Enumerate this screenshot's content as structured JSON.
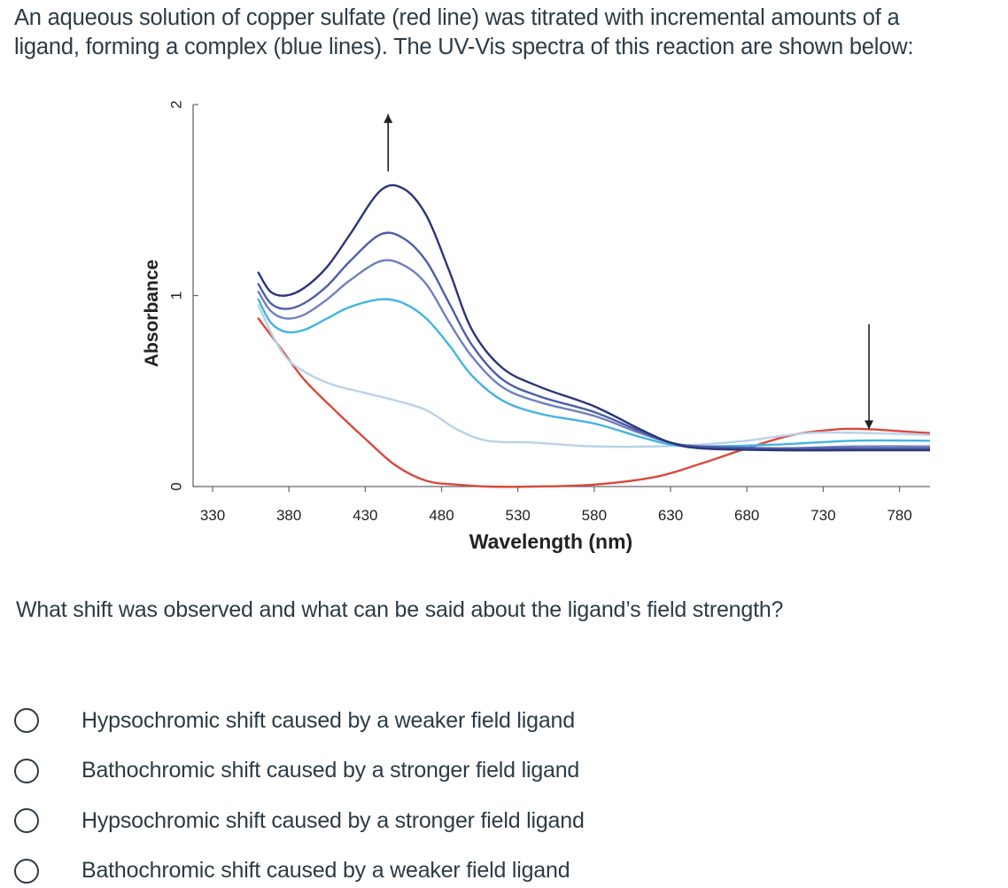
{
  "intro": {
    "line1": "An aqueous solution of copper sulfate (red line) was titrated with incremental amounts of a",
    "line2": "ligand, forming a complex (blue lines). The UV-Vis spectra of this reaction are shown below:"
  },
  "question": "What shift was observed and what can be said about the ligand’s field strength?",
  "answers": [
    "Hypsochromic shift caused by a weaker field ligand",
    "Bathochromic shift caused by a stronger field ligand",
    "Hypsochromic shift caused by a stronger field ligand",
    "Bathochromic shift caused by a weaker field ligand"
  ],
  "chart_data": {
    "type": "line",
    "title": "",
    "xlabel": "Wavelength (nm)",
    "ylabel": "Absorbance",
    "xlim": [
      330,
      800
    ],
    "ylim": [
      0,
      2
    ],
    "x_ticks": [
      330,
      380,
      430,
      480,
      530,
      580,
      630,
      680,
      730,
      780
    ],
    "x_tick_labels": [
      "330",
      "380",
      "430",
      "480",
      "530",
      "580",
      "630",
      "680",
      "730",
      "780"
    ],
    "y_ticks": [
      0,
      1,
      2
    ],
    "y_tick_labels": [
      "0",
      "1",
      "2"
    ],
    "grid": false,
    "legend": "none",
    "annotations": [
      {
        "type": "arrow-up",
        "x": 445,
        "y_from": 1.65,
        "y_to": 1.95
      },
      {
        "type": "arrow-down",
        "x": 760,
        "y_from": 0.85,
        "y_to": 0.3
      }
    ],
    "series": [
      {
        "color": "#d9493b",
        "x": [
          360,
          375,
          390,
          410,
          430,
          450,
          470,
          490,
          510,
          540,
          580,
          620,
          650,
          680,
          710,
          740,
          760,
          780,
          800
        ],
        "y": [
          0.88,
          0.72,
          0.56,
          0.4,
          0.25,
          0.11,
          0.03,
          0.01,
          0.0,
          0.0,
          0.01,
          0.05,
          0.12,
          0.2,
          0.27,
          0.3,
          0.3,
          0.29,
          0.28
        ]
      },
      {
        "color": "#b8d2ea",
        "x": [
          360,
          370,
          380,
          395,
          410,
          430,
          450,
          470,
          490,
          510,
          540,
          580,
          620,
          650,
          680,
          720,
          760,
          800
        ],
        "y": [
          0.95,
          0.78,
          0.66,
          0.58,
          0.53,
          0.49,
          0.45,
          0.4,
          0.3,
          0.24,
          0.23,
          0.21,
          0.21,
          0.22,
          0.24,
          0.28,
          0.28,
          0.27
        ]
      },
      {
        "color": "#42b4e0",
        "x": [
          360,
          368,
          378,
          390,
          405,
          420,
          440,
          455,
          470,
          485,
          500,
          520,
          545,
          580,
          610,
          630,
          650,
          700,
          750,
          800
        ],
        "y": [
          0.98,
          0.86,
          0.81,
          0.82,
          0.88,
          0.94,
          0.98,
          0.96,
          0.88,
          0.74,
          0.58,
          0.45,
          0.38,
          0.33,
          0.26,
          0.22,
          0.21,
          0.22,
          0.24,
          0.24
        ]
      },
      {
        "color": "#6f7fc0",
        "x": [
          360,
          368,
          378,
          390,
          405,
          420,
          440,
          455,
          470,
          485,
          500,
          520,
          545,
          580,
          610,
          630,
          650,
          700,
          750,
          800
        ],
        "y": [
          1.02,
          0.92,
          0.88,
          0.9,
          0.98,
          1.08,
          1.18,
          1.16,
          1.06,
          0.86,
          0.68,
          0.52,
          0.44,
          0.37,
          0.28,
          0.23,
          0.21,
          0.2,
          0.21,
          0.21
        ]
      },
      {
        "color": "#4b5ea8",
        "x": [
          360,
          368,
          378,
          390,
          405,
          420,
          440,
          455,
          470,
          485,
          500,
          520,
          545,
          580,
          610,
          630,
          650,
          700,
          750,
          800
        ],
        "y": [
          1.06,
          0.96,
          0.93,
          0.96,
          1.05,
          1.18,
          1.32,
          1.3,
          1.18,
          0.96,
          0.74,
          0.56,
          0.47,
          0.39,
          0.29,
          0.23,
          0.21,
          0.2,
          0.2,
          0.2
        ]
      },
      {
        "color": "#2c3478",
        "x": [
          360,
          368,
          378,
          390,
          405,
          420,
          440,
          455,
          470,
          485,
          500,
          520,
          545,
          580,
          610,
          630,
          650,
          700,
          750,
          800
        ],
        "y": [
          1.12,
          1.02,
          1.0,
          1.04,
          1.15,
          1.32,
          1.55,
          1.56,
          1.42,
          1.13,
          0.82,
          0.62,
          0.52,
          0.42,
          0.3,
          0.23,
          0.2,
          0.19,
          0.19,
          0.19
        ]
      }
    ]
  }
}
